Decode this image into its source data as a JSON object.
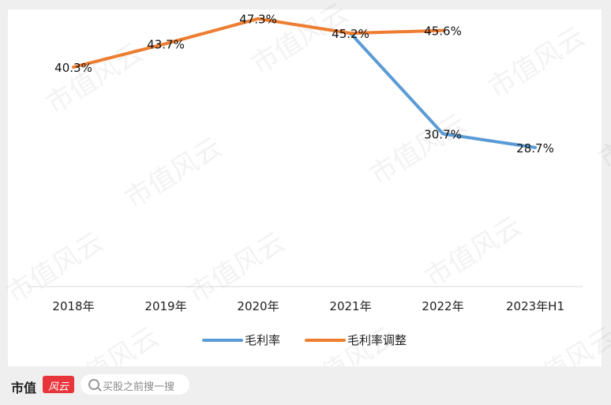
{
  "chart_data": {
    "type": "line",
    "categories": [
      "2018年",
      "2019年",
      "2020年",
      "2021年",
      "2022年",
      "2023年H1"
    ],
    "series": [
      {
        "name": "毛利率",
        "color": "#5b9bd5",
        "values": [
          null,
          null,
          null,
          45.2,
          30.7,
          28.7
        ],
        "labels": [
          "",
          "",
          "",
          "",
          "30.7%",
          "28.7%"
        ]
      },
      {
        "name": "毛利率调整",
        "color": "#ed7d31",
        "values": [
          40.3,
          43.7,
          47.3,
          45.2,
          45.6,
          null
        ],
        "labels": [
          "40.3%",
          "43.7%",
          "47.3%",
          "45.2%",
          "45.6%",
          ""
        ]
      }
    ],
    "ylim": [
      10,
      50
    ],
    "grid": false,
    "legend": "bottom"
  },
  "watermark": "市值风云",
  "footer": {
    "brand": "市值",
    "brand_box": "风云",
    "search_placeholder": "买股之前搜一搜"
  }
}
